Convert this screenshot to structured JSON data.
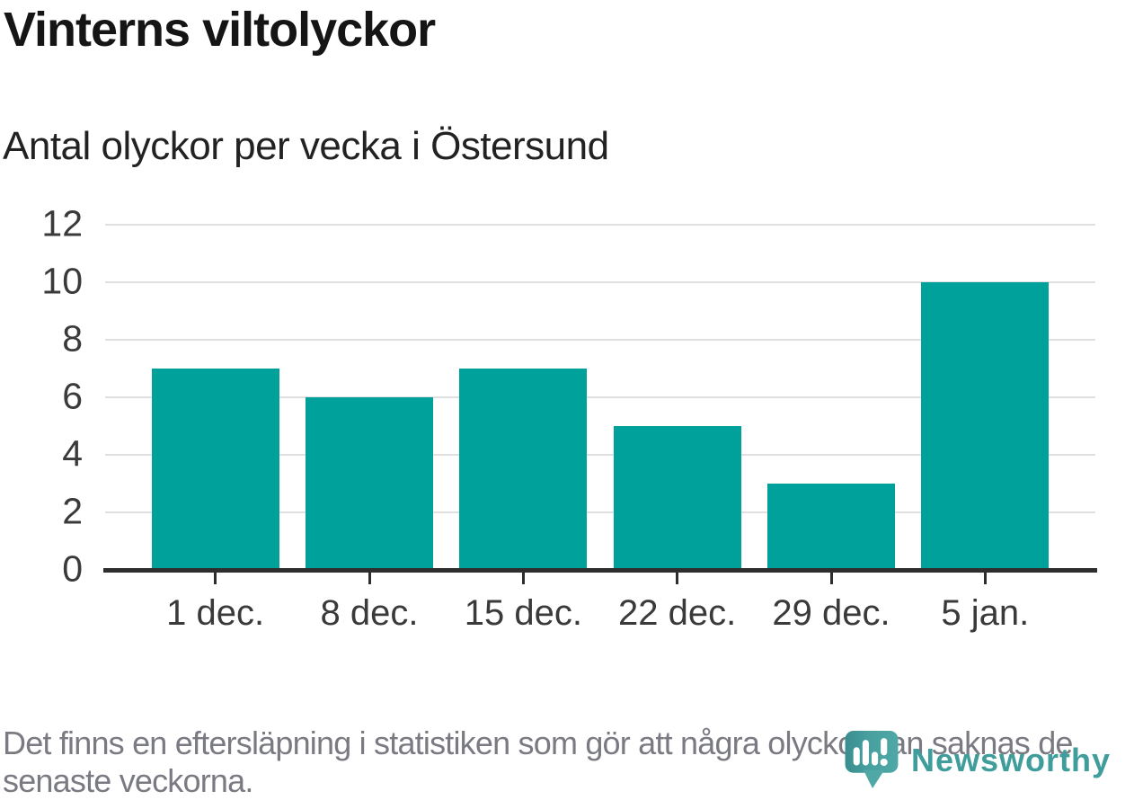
{
  "header": {
    "title": "Vinterns viltolyckor",
    "subtitle": "Antal olyckor per vecka i Östersund"
  },
  "chart_data": {
    "type": "bar",
    "title": "Vinterns viltolyckor",
    "subtitle": "Antal olyckor per vecka i Östersund",
    "categories": [
      "1 dec.",
      "8 dec.",
      "15 dec.",
      "22 dec.",
      "29 dec.",
      "5 jan."
    ],
    "values": [
      7,
      6,
      7,
      5,
      3,
      10
    ],
    "xlabel": "",
    "ylabel": "",
    "ylim": [
      0,
      12
    ],
    "yticks": [
      0,
      2,
      4,
      6,
      8,
      10,
      12
    ],
    "grid": "horizontal",
    "legend": "none",
    "bar_color": "#00a19a",
    "axis_color": "#2e2e2e",
    "grid_color": "#e0e0e0",
    "tick_label_color": "#3a3a3a"
  },
  "footer": {
    "note_lines": [
      "Det finns en eftersläpning i statistiken som gör att några olyckor kan saknas de",
      "senaste veckorna."
    ],
    "logo_text": "Newsworthy",
    "logo_text_color": "#3f9d9b",
    "logo_icon_color_dark": "#3a8d8e",
    "logo_icon_color_light": "#4fa8a6"
  }
}
